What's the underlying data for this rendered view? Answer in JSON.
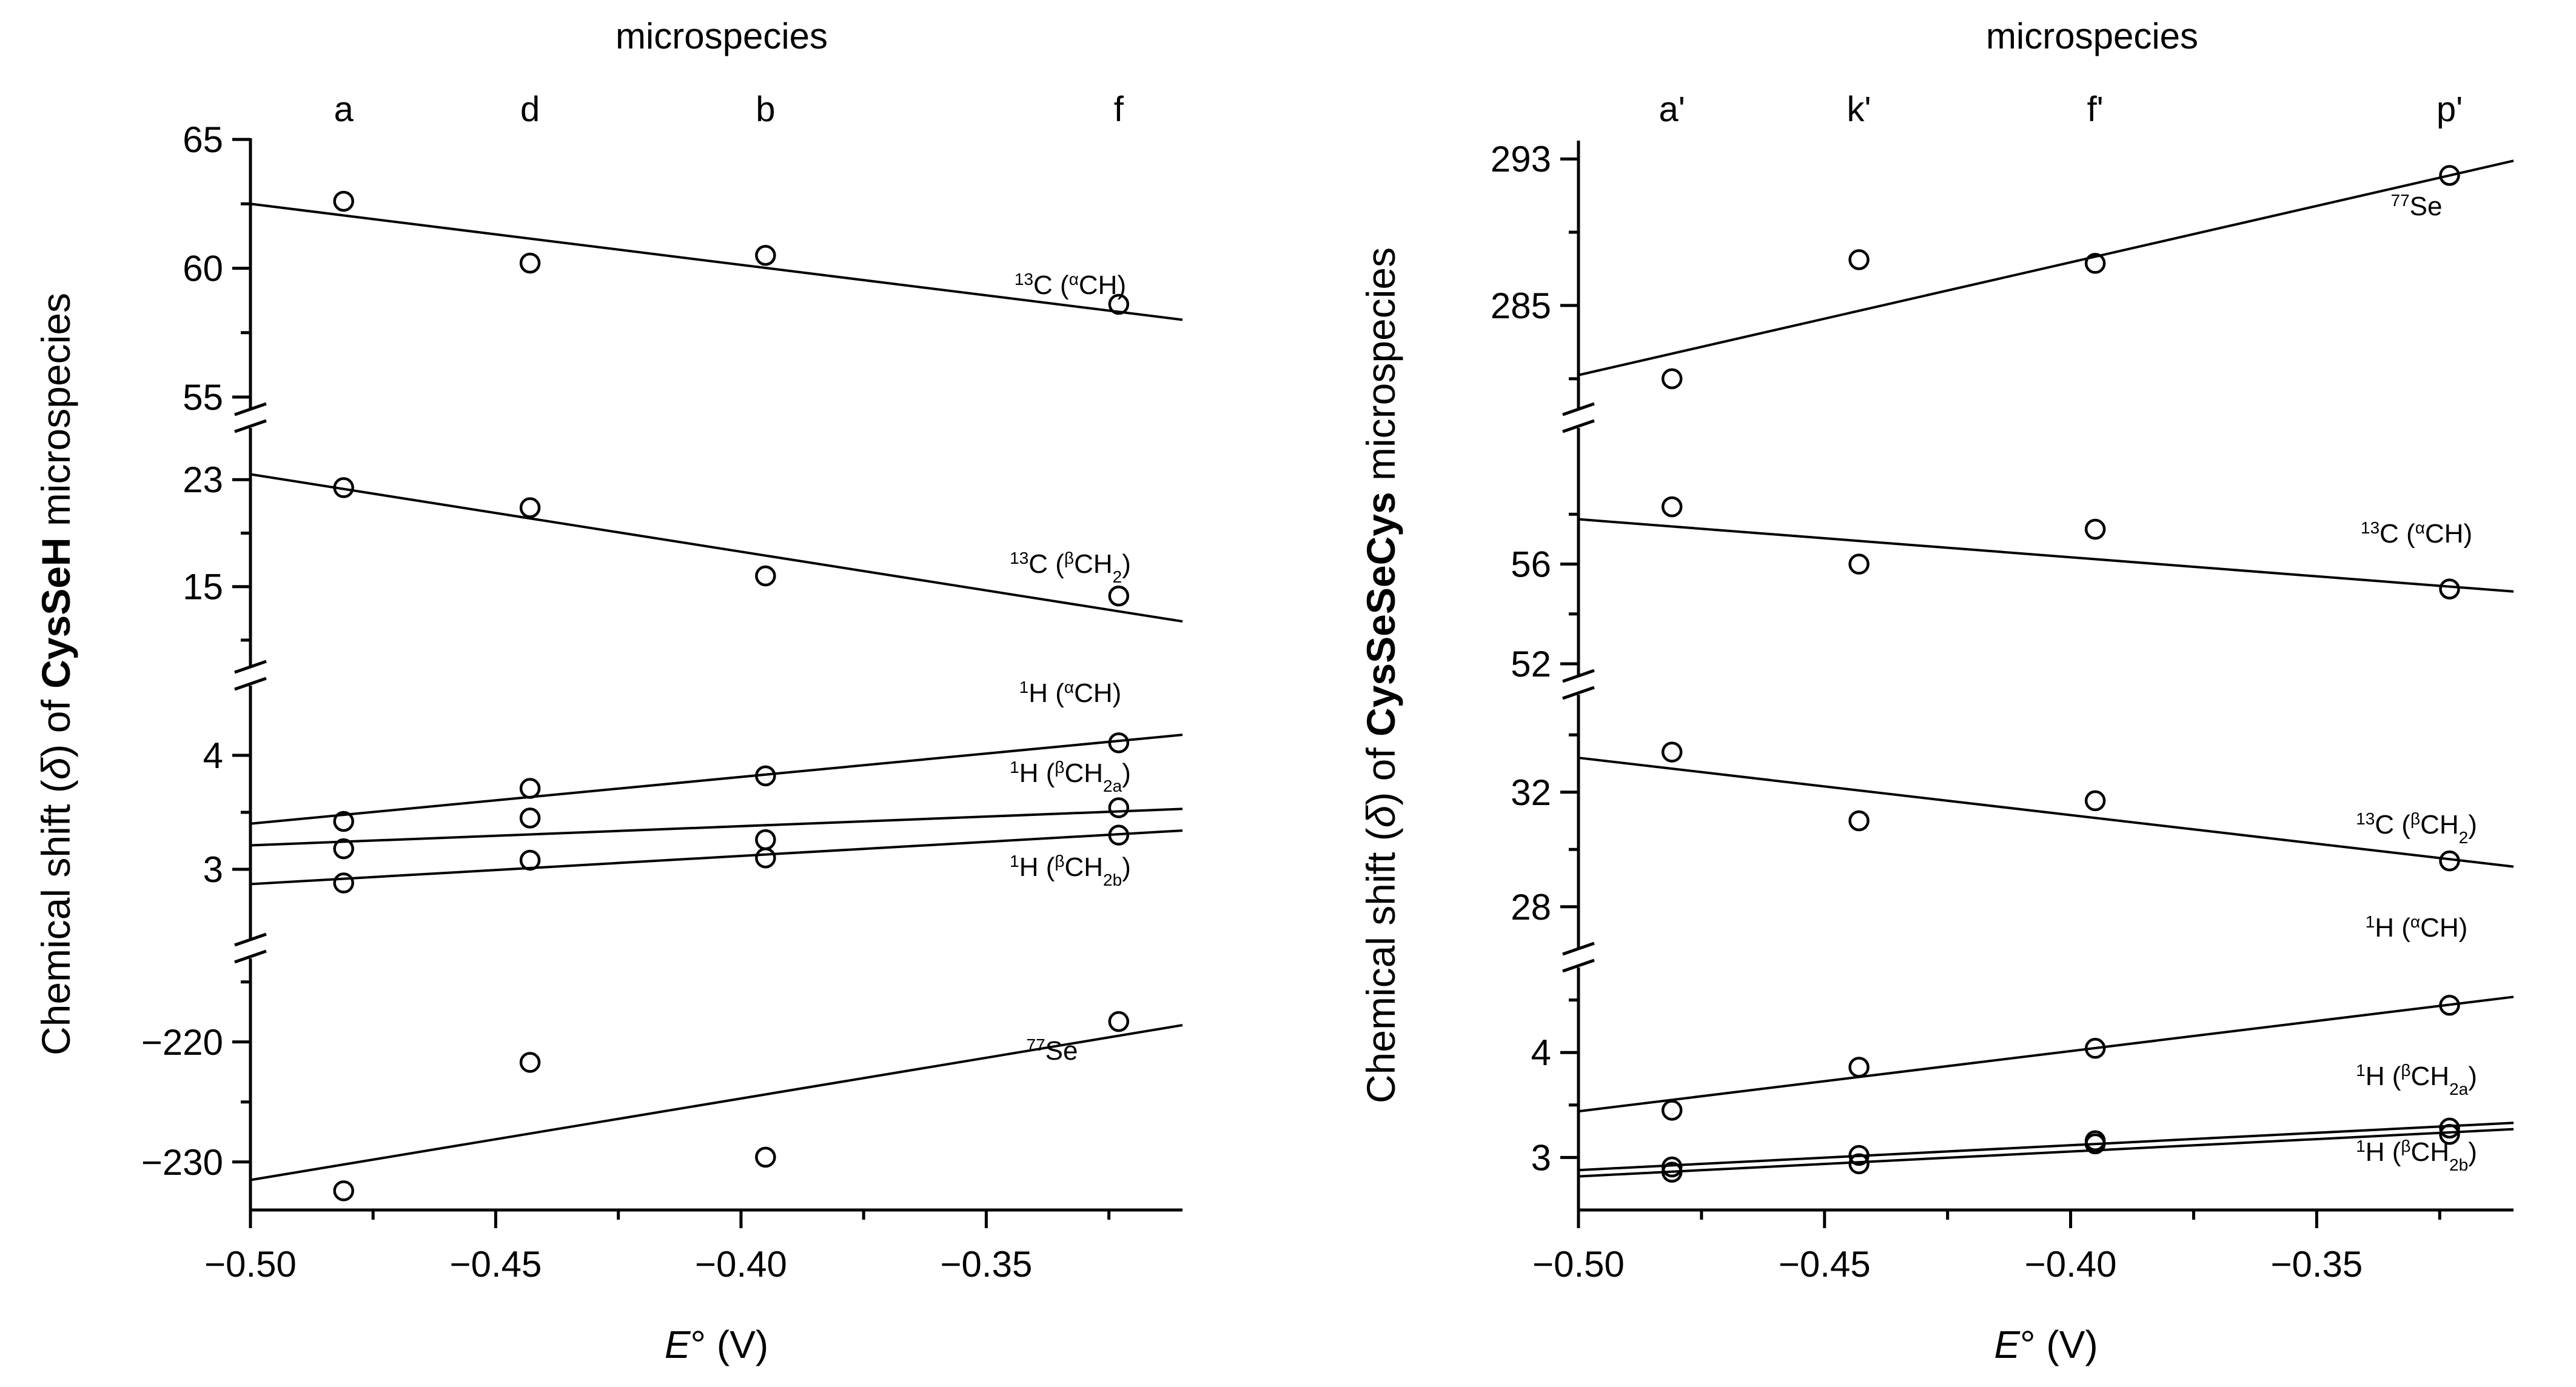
{
  "chart_data": [
    {
      "type": "scatter",
      "panel": "left",
      "top_axis_title": "microspecies",
      "top_axis_labels": [
        "a",
        "d",
        "b",
        "f"
      ],
      "top_axis_x": [
        -0.481,
        -0.443,
        -0.395,
        -0.323
      ],
      "x_axis": {
        "label_italic": "E",
        "label_rest": "° (V)",
        "range": [
          -0.5,
          -0.31
        ],
        "ticks": [
          -0.5,
          -0.45,
          -0.4,
          -0.35
        ],
        "tick_labels": [
          "−0.50",
          "−0.45",
          "−0.40",
          "−0.35"
        ]
      },
      "y_axis_title": {
        "pre": "Chemical shift (",
        "delta": "δ",
        "mid": ") of ",
        "bold": "CysSeH",
        "post": " microspecies"
      },
      "segments": [
        {
          "name": "13C (αCH)",
          "range": [
            55,
            65
          ],
          "ticks": [
            55,
            60,
            65
          ],
          "tick_labels": [
            "55",
            "60",
            "65"
          ],
          "minor_ticks": [
            57.5,
            62.5
          ],
          "series": [
            {
              "label_sup": "13",
              "label_el": "C (",
              "label_sup2": "α",
              "label_grp": "CH",
              "label_sub": "",
              "label_close": ")",
              "x": [
                -0.481,
                -0.443,
                -0.395,
                -0.323
              ],
              "y": [
                62.6,
                60.2,
                60.5,
                58.6
              ],
              "fit": [
                [
                  -0.5,
                  62.5
                ],
                [
                  -0.31,
                  58.0
                ]
              ]
            }
          ]
        },
        {
          "name": "13C (βCH2)",
          "range": [
            10,
            26
          ],
          "ticks": [
            15,
            23
          ],
          "tick_labels": [
            "15",
            "23"
          ],
          "minor_ticks": [
            11,
            19
          ],
          "series": [
            {
              "label_sup": "13",
              "label_el": "C (",
              "label_sup2": "β",
              "label_grp": "CH",
              "label_sub": "2",
              "label_close": ")",
              "x": [
                -0.481,
                -0.443,
                -0.395,
                -0.323
              ],
              "y": [
                22.4,
                20.9,
                15.8,
                14.3
              ],
              "fit": [
                [
                  -0.5,
                  23.4
                ],
                [
                  -0.31,
                  12.4
                ]
              ]
            }
          ]
        },
        {
          "name": "1H",
          "range": [
            2.5,
            4.5
          ],
          "ticks": [
            3,
            4
          ],
          "tick_labels": [
            "3",
            "4"
          ],
          "minor_ticks": [
            3.5
          ],
          "series": [
            {
              "label_sup": "1",
              "label_el": "H (",
              "label_sup2": "α",
              "label_grp": "CH",
              "label_sub": "",
              "label_close": ")",
              "x": [
                -0.481,
                -0.443,
                -0.395,
                -0.323
              ],
              "y": [
                3.42,
                3.71,
                3.82,
                4.11
              ],
              "fit": [
                [
                  -0.5,
                  3.4
                ],
                [
                  -0.31,
                  4.18
                ]
              ]
            },
            {
              "label_sup": "1",
              "label_el": "H (",
              "label_sup2": "β",
              "label_grp": "CH",
              "label_sub": "2a",
              "label_close": ")",
              "x": [
                -0.481,
                -0.443,
                -0.395,
                -0.323
              ],
              "y": [
                3.18,
                3.45,
                3.26,
                3.54
              ],
              "fit": [
                [
                  -0.5,
                  3.21
                ],
                [
                  -0.31,
                  3.53
                ]
              ]
            },
            {
              "label_sup": "1",
              "label_el": "H (",
              "label_sup2": "β",
              "label_grp": "CH",
              "label_sub": "2b",
              "label_close": ")",
              "x": [
                -0.481,
                -0.443,
                -0.395,
                -0.323
              ],
              "y": [
                2.88,
                3.08,
                3.1,
                3.3
              ],
              "fit": [
                [
                  -0.5,
                  2.87
                ],
                [
                  -0.31,
                  3.34
                ]
              ]
            }
          ]
        },
        {
          "name": "77Se",
          "range": [
            -234,
            -214
          ],
          "ticks": [
            -230,
            -220
          ],
          "tick_labels": [
            "−230",
            "−220"
          ],
          "minor_ticks": [
            -225,
            -215
          ],
          "series": [
            {
              "label_sup": "77",
              "label_el": "Se",
              "label_sup2": "",
              "label_grp": "",
              "label_sub": "",
              "label_close": "",
              "x": [
                -0.481,
                -0.443,
                -0.395,
                -0.323
              ],
              "y": [
                -232.4,
                -221.7,
                -229.6,
                -218.3
              ],
              "fit": [
                [
                  -0.5,
                  -231.5
                ],
                [
                  -0.31,
                  -218.6
                ]
              ]
            }
          ]
        }
      ]
    },
    {
      "type": "scatter",
      "panel": "right",
      "top_axis_title": "microspecies",
      "top_axis_labels": [
        "a'",
        "k'",
        "f'",
        "p'"
      ],
      "top_axis_x": [
        -0.481,
        -0.443,
        -0.395,
        -0.323
      ],
      "x_axis": {
        "label_italic": "E",
        "label_rest": "° (V)",
        "range": [
          -0.5,
          -0.31
        ],
        "ticks": [
          -0.5,
          -0.45,
          -0.4,
          -0.35
        ],
        "tick_labels": [
          "−0.50",
          "−0.45",
          "−0.40",
          "−0.35"
        ]
      },
      "y_axis_title": {
        "pre": "Chemical shift (",
        "delta": "δ",
        "mid": ") of ",
        "bold": "CysSeSeCys",
        "post": " microspecies"
      },
      "segments": [
        {
          "name": "77Se",
          "range": [
            280,
            294
          ],
          "ticks": [
            285,
            293
          ],
          "tick_labels": [
            "285",
            "293"
          ],
          "minor_ticks": [
            281,
            289
          ],
          "series": [
            {
              "label_sup": "77",
              "label_el": "Se",
              "label_sup2": "",
              "label_grp": "",
              "label_sub": "",
              "label_close": "",
              "x": [
                -0.481,
                -0.443,
                -0.395,
                -0.323
              ],
              "y": [
                281.0,
                287.5,
                287.3,
                292.1
              ],
              "fit": [
                [
                  -0.5,
                  281.2
                ],
                [
                  -0.31,
                  292.9
                ]
              ]
            }
          ]
        },
        {
          "name": "13C (αCH)",
          "range": [
            52,
            61
          ],
          "ticks": [
            52,
            56
          ],
          "tick_labels": [
            "52",
            "56"
          ],
          "minor_ticks": [
            54,
            58
          ],
          "series": [
            {
              "label_sup": "13",
              "label_el": "C (",
              "label_sup2": "α",
              "label_grp": "CH",
              "label_sub": "",
              "label_close": ")",
              "x": [
                -0.481,
                -0.443,
                -0.395,
                -0.323
              ],
              "y": [
                58.3,
                56.0,
                57.4,
                55.0
              ],
              "fit": [
                [
                  -0.5,
                  57.8
                ],
                [
                  -0.31,
                  54.9
                ]
              ]
            }
          ]
        },
        {
          "name": "13C (βCH2)",
          "range": [
            27,
            35
          ],
          "ticks": [
            28,
            32
          ],
          "tick_labels": [
            "28",
            "32"
          ],
          "minor_ticks": [
            30,
            34
          ],
          "series": [
            {
              "label_sup": "13",
              "label_el": "C (",
              "label_sup2": "β",
              "label_grp": "CH",
              "label_sub": "2",
              "label_close": ")",
              "x": [
                -0.481,
                -0.443,
                -0.395,
                -0.323
              ],
              "y": [
                33.4,
                31.0,
                31.7,
                29.6
              ],
              "fit": [
                [
                  -0.5,
                  33.2
                ],
                [
                  -0.31,
                  29.4
                ]
              ]
            }
          ]
        },
        {
          "name": "1H",
          "range": [
            2.5,
            4.7
          ],
          "ticks": [
            3,
            4
          ],
          "tick_labels": [
            "3",
            "4"
          ],
          "minor_ticks": [
            3.5,
            4.5
          ],
          "series": [
            {
              "label_sup": "1",
              "label_el": "H (",
              "label_sup2": "α",
              "label_grp": "CH",
              "label_sub": "",
              "label_close": ")",
              "x": [
                -0.481,
                -0.443,
                -0.395,
                -0.323
              ],
              "y": [
                3.45,
                3.86,
                4.04,
                4.45
              ],
              "fit": [
                [
                  -0.5,
                  3.44
                ],
                [
                  -0.31,
                  4.53
                ]
              ]
            },
            {
              "label_sup": "1",
              "label_el": "H (",
              "label_sup2": "β",
              "label_grp": "CH",
              "label_sub": "2a",
              "label_close": ")",
              "x": [
                -0.481,
                -0.443,
                -0.395,
                -0.323
              ],
              "y": [
                2.91,
                3.02,
                3.16,
                3.28
              ],
              "fit": [
                [
                  -0.5,
                  2.88
                ],
                [
                  -0.31,
                  3.33
                ]
              ]
            },
            {
              "label_sup": "1",
              "label_el": "H (",
              "label_sup2": "β",
              "label_grp": "CH",
              "label_sub": "2b",
              "label_close": ")",
              "x": [
                -0.481,
                -0.443,
                -0.395,
                -0.323
              ],
              "y": [
                2.86,
                2.94,
                3.13,
                3.22
              ],
              "fit": [
                [
                  -0.5,
                  2.82
                ],
                [
                  -0.31,
                  3.27
                ]
              ]
            }
          ]
        }
      ]
    }
  ]
}
